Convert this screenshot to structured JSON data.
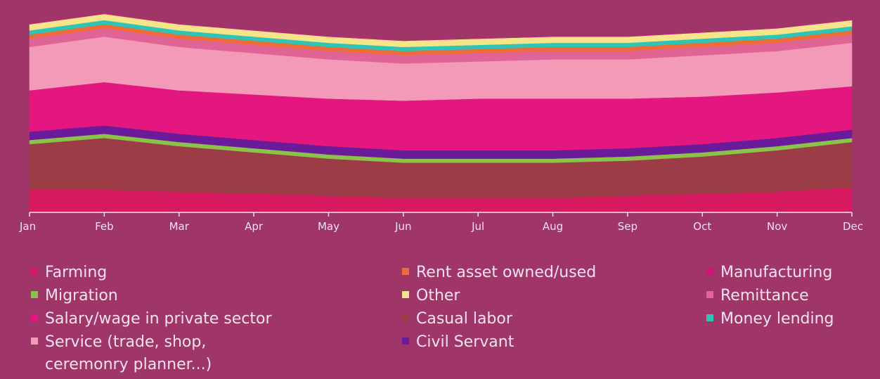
{
  "chart_data": {
    "type": "area",
    "stacked": true,
    "x": [
      "Jan",
      "Feb",
      "Mar",
      "Apr",
      "May",
      "Jun",
      "Jul",
      "Aug",
      "Sep",
      "Oct",
      "Nov",
      "Dec"
    ],
    "ylim": [
      0,
      100
    ],
    "grid": false,
    "legend_position": "bottom",
    "series": [
      {
        "name": "Farming",
        "color": "#d81b60",
        "values": [
          11,
          11,
          10,
          9,
          8,
          7,
          7,
          7,
          8,
          9,
          10,
          12
        ]
      },
      {
        "name": "Casual labor",
        "color": "#9c3c46",
        "values": [
          22,
          25,
          22,
          20,
          18,
          17,
          17,
          17,
          17,
          18,
          20,
          22
        ]
      },
      {
        "name": "Migration",
        "color": "#8bc34a",
        "values": [
          2,
          2,
          2,
          2,
          2,
          2,
          2,
          2,
          2,
          2,
          2,
          2
        ]
      },
      {
        "name": "Civil Servant",
        "color": "#6a1b9a",
        "values": [
          4,
          4,
          4,
          4,
          4,
          4,
          4,
          4,
          4,
          4,
          4,
          4
        ]
      },
      {
        "name": "Salary/wage in private sector",
        "color": "#e4167f",
        "values": [
          20,
          21,
          21,
          22,
          23,
          24,
          25,
          25,
          24,
          23,
          22,
          21
        ]
      },
      {
        "name": "Service (trade, shop, ceremonry planner...)",
        "color": "#f29ab7",
        "values": [
          21,
          22,
          21,
          20,
          19,
          18,
          18,
          19,
          19,
          20,
          20,
          21
        ]
      },
      {
        "name": "Remittance",
        "color": "#e06496",
        "values": [
          4,
          4,
          4,
          4,
          4,
          4,
          4,
          4,
          4,
          4,
          4,
          4
        ]
      },
      {
        "name": "Rent asset owned/used",
        "color": "#ef6c3a",
        "values": [
          2,
          2,
          2,
          2,
          2,
          2,
          2,
          2,
          2,
          2,
          2,
          2
        ]
      },
      {
        "name": "Money lending",
        "color": "#2ec4b6",
        "values": [
          2,
          2,
          2,
          2,
          2,
          2,
          2,
          2,
          2,
          2,
          2,
          2
        ]
      },
      {
        "name": "Other",
        "color": "#f5e48a",
        "values": [
          3,
          3,
          3,
          3,
          3,
          3,
          3,
          3,
          3,
          3,
          3,
          3
        ]
      },
      {
        "name": "Manufacturing",
        "color": "#d5127a",
        "values": [
          0,
          0,
          0,
          0,
          0,
          0,
          0,
          0,
          0,
          0,
          0,
          0
        ]
      }
    ],
    "legend": [
      {
        "name": "Farming",
        "color": "#d81b60"
      },
      {
        "name": "Migration",
        "color": "#8bc34a"
      },
      {
        "name": "Salary/wage in private sector",
        "color": "#e4167f"
      },
      {
        "name": "Service (trade, shop,\nceremonry planner...)",
        "color": "#f29ab7"
      },
      {
        "name": "Rent asset owned/used",
        "color": "#ef6c3a"
      },
      {
        "name": "Other",
        "color": "#f5e48a"
      },
      {
        "name": "Casual labor",
        "color": "#9c3c46"
      },
      {
        "name": "Civil Servant",
        "color": "#6a1b9a"
      },
      {
        "name": "Manufacturing",
        "color": "#d5127a"
      },
      {
        "name": "Remittance",
        "color": "#e06496"
      },
      {
        "name": "Money lending",
        "color": "#2ec4b6"
      }
    ]
  }
}
